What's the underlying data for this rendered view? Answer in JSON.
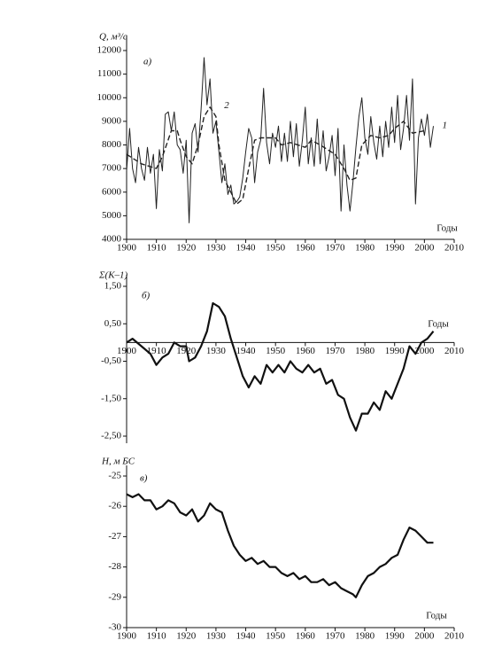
{
  "chart_data": [
    {
      "type": "line",
      "ylabel": "Q, м³/с",
      "panel_label": "а)",
      "xlabel": "Годы",
      "xlim": [
        1900,
        2010
      ],
      "xticks": [
        1900,
        1910,
        1920,
        1930,
        1940,
        1950,
        1960,
        1970,
        1980,
        1990,
        2000,
        2010
      ],
      "ylim": [
        4000,
        12000
      ],
      "yticks": [
        4000,
        5000,
        6000,
        7000,
        8000,
        9000,
        10000,
        11000,
        12000
      ],
      "series": [
        {
          "name": "1",
          "color": "#222222",
          "x": [
            1900,
            1901,
            1902,
            1903,
            1904,
            1905,
            1906,
            1907,
            1908,
            1909,
            1910,
            1911,
            1912,
            1913,
            1914,
            1915,
            1916,
            1917,
            1918,
            1919,
            1920,
            1921,
            1922,
            1923,
            1924,
            1925,
            1926,
            1927,
            1928,
            1929,
            1930,
            1931,
            1932,
            1933,
            1934,
            1935,
            1936,
            1937,
            1938,
            1939,
            1940,
            1941,
            1942,
            1943,
            1944,
            1945,
            1946,
            1947,
            1948,
            1949,
            1950,
            1951,
            1952,
            1953,
            1954,
            1955,
            1956,
            1957,
            1958,
            1959,
            1960,
            1961,
            1962,
            1963,
            1964,
            1965,
            1966,
            1967,
            1968,
            1969,
            1970,
            1971,
            1972,
            1973,
            1974,
            1975,
            1976,
            1977,
            1978,
            1979,
            1980,
            1981,
            1982,
            1983,
            1984,
            1985,
            1986,
            1987,
            1988,
            1989,
            1990,
            1991,
            1992,
            1993,
            1994,
            1995,
            1996,
            1997,
            1998,
            1999,
            2000,
            2001,
            2002,
            2003
          ],
          "values": [
            6900,
            8700,
            7000,
            6400,
            7900,
            7000,
            6500,
            7900,
            6800,
            7600,
            5300,
            7800,
            6900,
            9300,
            9400,
            8600,
            9400,
            8000,
            7800,
            6800,
            8200,
            4700,
            8500,
            8900,
            7700,
            9500,
            11700,
            9700,
            10800,
            8500,
            9000,
            7700,
            6400,
            7200,
            5900,
            6300,
            5500,
            5600,
            5800,
            6600,
            7700,
            8700,
            8300,
            6400,
            7700,
            8200,
            10400,
            8100,
            7200,
            8500,
            7900,
            8800,
            7300,
            8500,
            7300,
            9000,
            7500,
            8900,
            7100,
            8200,
            9600,
            7200,
            8300,
            7100,
            9100,
            7200,
            8600,
            6900,
            7500,
            8400,
            6700,
            8700,
            5200,
            8000,
            6300,
            5200,
            6400,
            7900,
            9200,
            10000,
            8300,
            7600,
            9200,
            8100,
            7400,
            8800,
            7500,
            9000,
            7900,
            9600,
            8100,
            10100,
            7800,
            8700,
            10100,
            8200,
            10800,
            5500,
            8300,
            9100,
            8400,
            9300,
            7900,
            8800
          ]
        },
        {
          "name": "2",
          "color": "#222222",
          "dashed": true,
          "x": [
            1900,
            1905,
            1910,
            1912,
            1915,
            1917,
            1918,
            1920,
            1922,
            1924,
            1926,
            1928,
            1930,
            1931,
            1933,
            1935,
            1937,
            1939,
            1941,
            1943,
            1945,
            1950,
            1952,
            1955,
            1960,
            1962,
            1965,
            1970,
            1973,
            1975,
            1977,
            1979,
            1982,
            1985,
            1988,
            1990,
            1993,
            1996,
            2000
          ],
          "values": [
            7600,
            7200,
            7000,
            7500,
            8600,
            8600,
            8200,
            7500,
            7200,
            8000,
            9200,
            9600,
            9200,
            8000,
            6500,
            6000,
            5500,
            5700,
            7000,
            8200,
            8300,
            8300,
            8000,
            8100,
            7900,
            8200,
            8000,
            7600,
            7000,
            6500,
            6600,
            8000,
            8400,
            8300,
            8400,
            8700,
            9000,
            8500,
            8600
          ]
        }
      ]
    },
    {
      "type": "line",
      "ylabel": "Σ(K–1)",
      "panel_label": "б)",
      "xlabel": "Годы",
      "color": "#111111",
      "xlim": [
        1900,
        2010
      ],
      "xticks": [
        1900,
        1910,
        1920,
        1930,
        1940,
        1950,
        1960,
        1970,
        1980,
        1990,
        2000,
        2010
      ],
      "ylim": [
        -2.5,
        1.5
      ],
      "yticks": [
        {
          "value": -2.5,
          "label": "-2,50"
        },
        {
          "value": -1.5,
          "label": "-1,50"
        },
        {
          "value": -0.5,
          "label": "-0,50"
        },
        {
          "value": 0.5,
          "label": "0,50"
        },
        {
          "value": 1.5,
          "label": "1,50"
        }
      ],
      "x": [
        1900,
        1902,
        1905,
        1908,
        1910,
        1912,
        1914,
        1916,
        1918,
        1920,
        1921,
        1923,
        1925,
        1927,
        1929,
        1931,
        1933,
        1935,
        1937,
        1939,
        1941,
        1943,
        1945,
        1947,
        1949,
        1951,
        1953,
        1955,
        1957,
        1959,
        1961,
        1963,
        1965,
        1967,
        1969,
        1971,
        1973,
        1975,
        1977,
        1979,
        1981,
        1983,
        1985,
        1987,
        1989,
        1991,
        1993,
        1995,
        1997,
        1999,
        2001,
        2003
      ],
      "values": [
        0,
        0.1,
        -0.1,
        -0.3,
        -0.6,
        -0.4,
        -0.3,
        0,
        -0.1,
        -0.1,
        -0.5,
        -0.4,
        -0.1,
        0.3,
        1.05,
        0.95,
        0.7,
        0.1,
        -0.4,
        -0.9,
        -1.2,
        -0.9,
        -1.1,
        -0.6,
        -0.8,
        -0.6,
        -0.8,
        -0.5,
        -0.7,
        -0.8,
        -0.6,
        -0.8,
        -0.7,
        -1.1,
        -1.0,
        -1.4,
        -1.5,
        -2.0,
        -2.35,
        -1.9,
        -1.9,
        -1.6,
        -1.8,
        -1.3,
        -1.5,
        -1.1,
        -0.7,
        -0.1,
        -0.3,
        0,
        0.1,
        0.3
      ]
    },
    {
      "type": "line",
      "ylabel": "H, м БС",
      "panel_label": "в)",
      "xlabel": "Годы",
      "color": "#111111",
      "xlim": [
        1900,
        2010
      ],
      "xticks": [
        1900,
        1910,
        1920,
        1930,
        1940,
        1950,
        1960,
        1970,
        1980,
        1990,
        2000,
        2010
      ],
      "ylim": [
        -30,
        -25
      ],
      "yticks": [
        -30,
        -29,
        -28,
        -27,
        -26,
        -25
      ],
      "x": [
        1900,
        1902,
        1904,
        1906,
        1908,
        1910,
        1912,
        1914,
        1916,
        1918,
        1920,
        1922,
        1924,
        1926,
        1928,
        1930,
        1932,
        1934,
        1936,
        1938,
        1940,
        1942,
        1944,
        1946,
        1948,
        1950,
        1952,
        1954,
        1956,
        1958,
        1960,
        1962,
        1964,
        1966,
        1968,
        1970,
        1972,
        1974,
        1976,
        1977,
        1979,
        1981,
        1983,
        1985,
        1987,
        1989,
        1991,
        1993,
        1995,
        1997,
        1999,
        2001,
        2003
      ],
      "values": [
        -25.6,
        -25.7,
        -25.6,
        -25.8,
        -25.8,
        -26.1,
        -26.0,
        -25.8,
        -25.9,
        -26.2,
        -26.3,
        -26.1,
        -26.5,
        -26.3,
        -25.9,
        -26.1,
        -26.2,
        -26.8,
        -27.3,
        -27.6,
        -27.8,
        -27.7,
        -27.9,
        -27.8,
        -28.0,
        -28.0,
        -28.2,
        -28.3,
        -28.2,
        -28.4,
        -28.3,
        -28.5,
        -28.5,
        -28.4,
        -28.6,
        -28.5,
        -28.7,
        -28.8,
        -28.9,
        -29.0,
        -28.6,
        -28.3,
        -28.2,
        -28.0,
        -27.9,
        -27.7,
        -27.6,
        -27.1,
        -26.7,
        -26.8,
        -27.0,
        -27.2,
        -27.2
      ]
    }
  ]
}
